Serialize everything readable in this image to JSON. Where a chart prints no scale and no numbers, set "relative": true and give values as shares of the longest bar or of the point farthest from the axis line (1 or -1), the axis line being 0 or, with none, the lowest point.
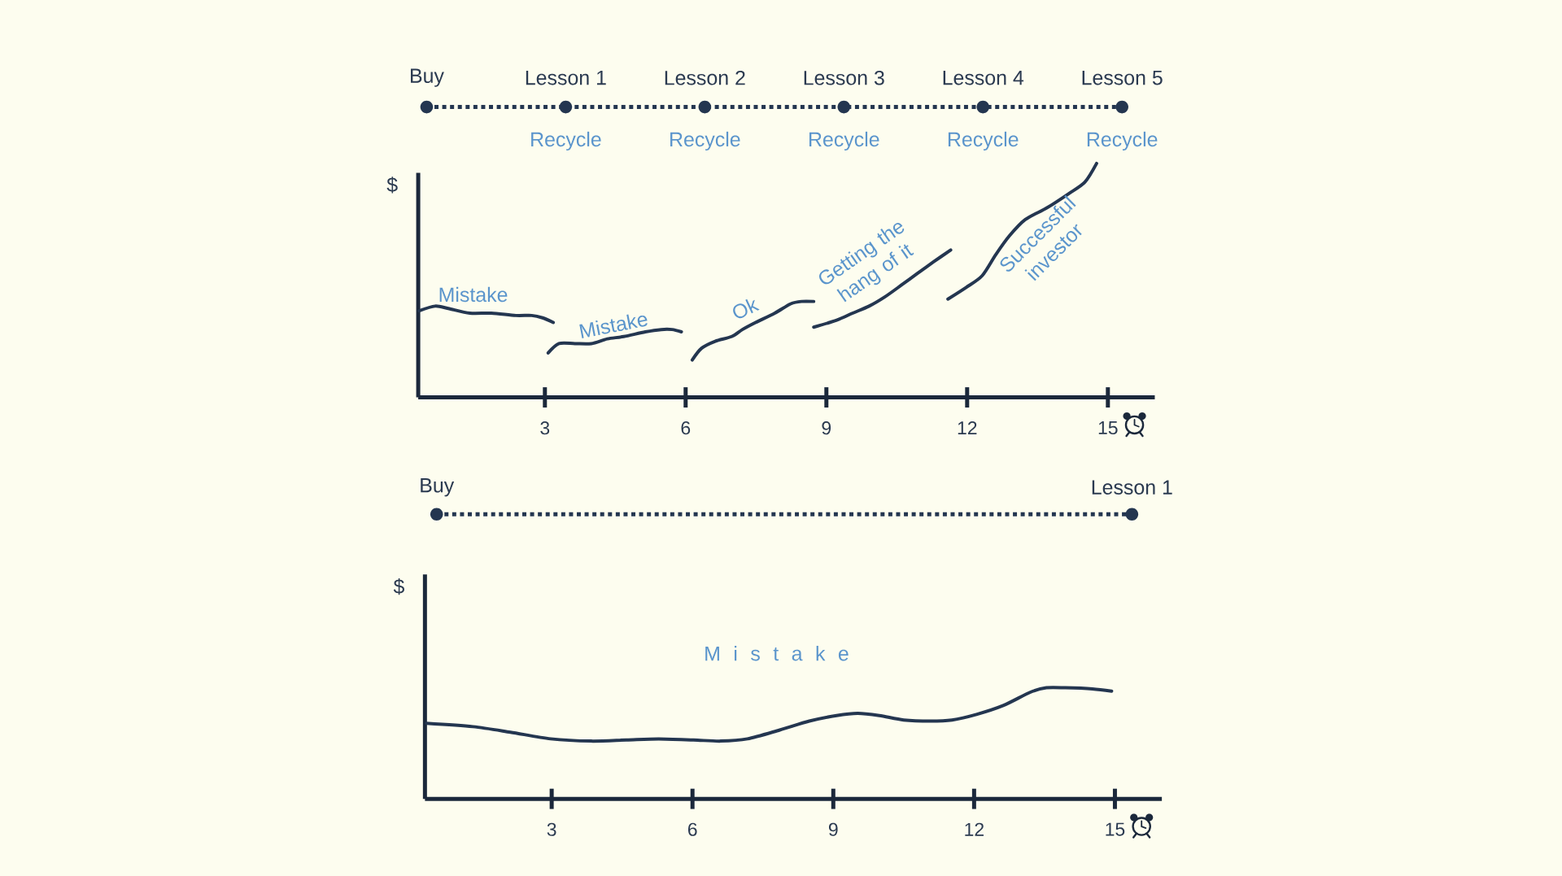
{
  "chart_data": [
    {
      "type": "other",
      "categories": [
        "Buy",
        "Lesson 1",
        "Lesson 2",
        "Lesson 3",
        "Lesson 4",
        "Lesson 5"
      ],
      "annotations": [
        {
          "text": "Recycle",
          "x": "Lesson 1"
        },
        {
          "text": "Recycle",
          "x": "Lesson 2"
        },
        {
          "text": "Recycle",
          "x": "Lesson 3"
        },
        {
          "text": "Recycle",
          "x": "Lesson 4"
        },
        {
          "text": "Recycle",
          "x": "Lesson 5"
        }
      ],
      "color": "#243650"
    },
    {
      "type": "line",
      "relative": true,
      "ylabel": "$",
      "xlim": [
        0.3,
        16
      ],
      "xticks": [
        3,
        6,
        9,
        12,
        15
      ],
      "series": [
        {
          "color": "#243650",
          "x": [
            0.32,
            0.66,
            0.94,
            1.4,
            1.86,
            2.38,
            2.72,
            2.95,
            3.18
          ],
          "values": [
            0.37,
            0.39,
            0.38,
            0.36,
            0.36,
            0.35,
            0.35,
            0.34,
            0.32
          ]
        },
        {
          "color": "#243650",
          "x": [
            3.07,
            3.3,
            3.64,
            3.99,
            4.33,
            4.68,
            5.14,
            5.48,
            5.71,
            5.91
          ],
          "values": [
            0.19,
            0.23,
            0.23,
            0.23,
            0.25,
            0.26,
            0.28,
            0.29,
            0.29,
            0.28
          ]
        },
        {
          "color": "#243650",
          "x": [
            6.14,
            6.34,
            6.63,
            6.98,
            7.21,
            7.49,
            7.9,
            8.24,
            8.47,
            8.73
          ],
          "values": [
            0.16,
            0.21,
            0.24,
            0.26,
            0.29,
            0.32,
            0.36,
            0.4,
            0.41,
            0.41
          ]
        },
        {
          "color": "#243650",
          "x": [
            8.73,
            9.22,
            9.56,
            9.91,
            10.25,
            10.6,
            10.94,
            11.29,
            11.65
          ],
          "values": [
            0.3,
            0.33,
            0.36,
            0.39,
            0.43,
            0.48,
            0.53,
            0.58,
            0.63
          ]
        },
        {
          "color": "#243650",
          "x": [
            11.59,
            11.98,
            12.32,
            12.61,
            12.9,
            13.24,
            13.7,
            14.16,
            14.51,
            14.76
          ],
          "values": [
            0.42,
            0.47,
            0.52,
            0.61,
            0.69,
            0.76,
            0.81,
            0.87,
            0.92,
            1
          ]
        }
      ],
      "annotations": [
        "Mistake",
        "Mistake",
        "Ok",
        "Getting the hang of it",
        "Successful investor"
      ]
    },
    {
      "type": "other",
      "categories": [
        "Buy",
        "Lesson 1"
      ],
      "color": "#243650"
    },
    {
      "type": "line",
      "relative": true,
      "ylabel": "$",
      "xlim": [
        0.3,
        16
      ],
      "xticks": [
        3,
        6,
        9,
        12,
        15
      ],
      "series": [
        {
          "color": "#243650",
          "x": [
            0.33,
            1.32,
            2.12,
            2.98,
            3.84,
            4.59,
            5.28,
            6.02,
            6.6,
            7.17,
            7.86,
            8.49,
            9.07,
            9.52,
            9.98,
            10.5,
            11.07,
            11.53,
            12.05,
            12.62,
            13.2,
            13.54,
            13.94,
            14.52,
            14.93
          ],
          "values": [
            0.68,
            0.65,
            0.6,
            0.54,
            0.52,
            0.53,
            0.54,
            0.53,
            0.52,
            0.54,
            0.62,
            0.7,
            0.75,
            0.77,
            0.75,
            0.71,
            0.7,
            0.71,
            0.76,
            0.84,
            0.96,
            1,
            1,
            0.99,
            0.97
          ]
        }
      ],
      "annotations": [
        "M i s t a k e"
      ]
    }
  ]
}
